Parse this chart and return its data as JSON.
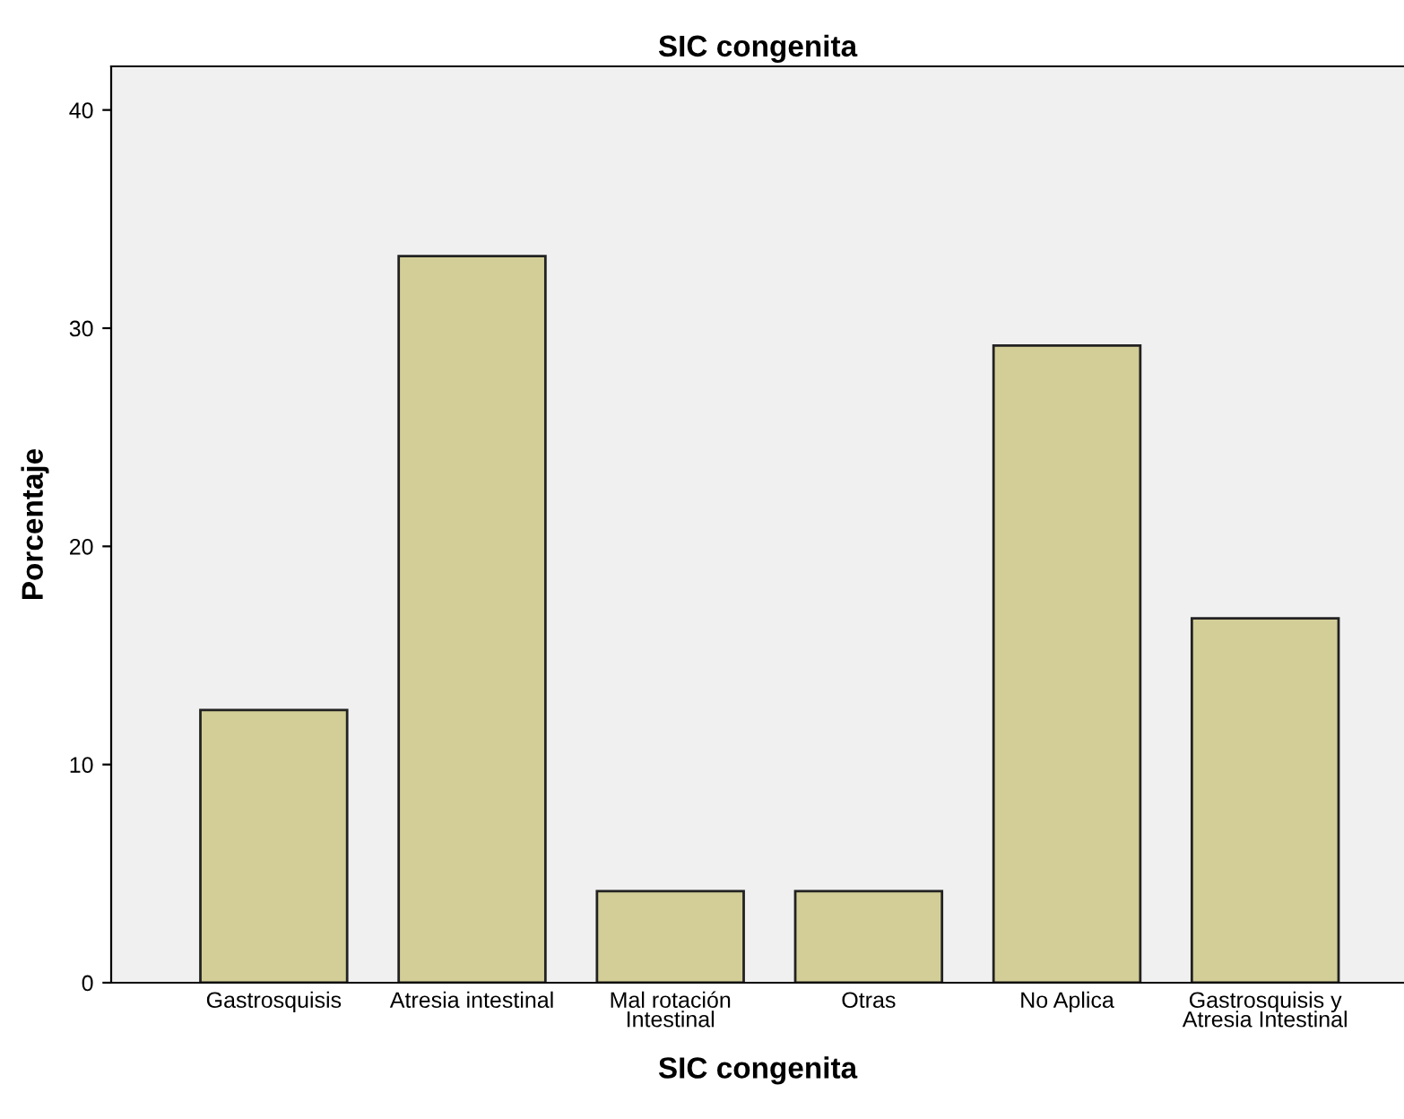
{
  "chart_data": {
    "type": "bar",
    "title": "SIC congenita",
    "xlabel": "SIC congenita",
    "ylabel": "Porcentaje",
    "categories": [
      "Gastrosquisis",
      "Atresia intestinal",
      "Mal rotación\nIntestinal",
      "Otras",
      "No Aplica",
      "Gastrosquisis y\nAtresia Intestinal"
    ],
    "values": [
      12.5,
      33.3,
      4.2,
      4.2,
      29.2,
      16.7
    ],
    "color": "#d3ce97",
    "ylim": [
      0,
      42
    ],
    "yticks": [
      0,
      10,
      20,
      30,
      40
    ],
    "grid": false
  }
}
